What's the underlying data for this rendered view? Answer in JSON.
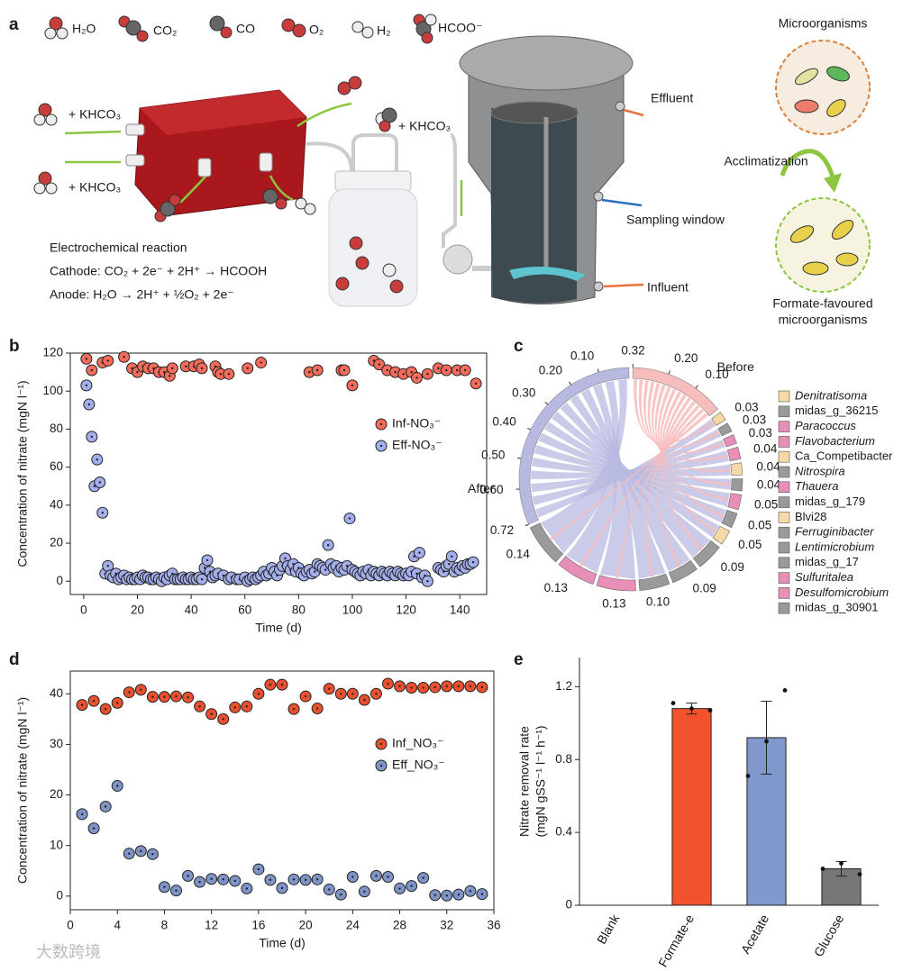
{
  "panel_labels": [
    "a",
    "b",
    "c",
    "d",
    "e"
  ],
  "diagram": {
    "molecule_legend": [
      "H₂O",
      "CO₂",
      "CO",
      "O₂",
      "H₂",
      "HCOO⁻"
    ],
    "feed_labels": [
      "+ KHCO₃",
      "+ KHCO₃",
      "+ KHCO₃"
    ],
    "reaction_title": "Electrochemical reaction",
    "cathode": "Cathode: CO₂ + 2e⁻ + 2H⁺ → HCOOH",
    "anode": "Anode: H₂O → 2H⁺ + ½O₂ + 2e⁻",
    "reactor_labels": [
      "Effluent",
      "Sampling window",
      "Influent"
    ],
    "microbes_top": "Microorganisms",
    "microbes_step": "Acclimatization",
    "microbes_bottom": [
      "Formate-favoured",
      "microorganisms"
    ]
  },
  "chart_data": [
    {
      "type": "scatter",
      "x_label": "Time (d)",
      "y_label": "Concentration of nitrate (mgN l⁻¹)",
      "xlim": [
        -5,
        150
      ],
      "ylim": [
        -7,
        120
      ],
      "xticks": [
        0,
        20,
        40,
        60,
        80,
        100,
        120,
        140
      ],
      "yticks": [
        0,
        20,
        40,
        60,
        80,
        100,
        120
      ],
      "series": [
        {
          "name": "Inf-NO₃⁻",
          "color": "#f36c5c",
          "x": [
            1,
            3,
            7,
            9,
            15,
            18,
            20,
            22,
            24,
            26,
            28,
            30,
            32,
            33,
            38,
            41,
            43,
            44,
            49,
            50,
            51,
            54,
            61,
            66,
            84,
            87,
            96,
            97,
            100,
            108,
            110,
            113,
            116,
            119,
            122,
            124,
            128,
            132,
            135,
            139,
            142,
            146
          ],
          "values": [
            117,
            111,
            115,
            116,
            118,
            112,
            110,
            113,
            112,
            112,
            110,
            110,
            108,
            112,
            113,
            113,
            114,
            112,
            113,
            110,
            109,
            109,
            112,
            115,
            110,
            111,
            111,
            111,
            103,
            116,
            114,
            111,
            110,
            109,
            110,
            107,
            109,
            112,
            111,
            111,
            111,
            104
          ]
        },
        {
          "name": "Eff-NO₃⁻",
          "color": "#a4aeea",
          "x": [
            1,
            2,
            3,
            4,
            5,
            6,
            7,
            8,
            9,
            10,
            11,
            12,
            13,
            14,
            15,
            16,
            17,
            18,
            19,
            20,
            21,
            22,
            23,
            24,
            25,
            26,
            27,
            28,
            29,
            30,
            31,
            32,
            33,
            34,
            35,
            36,
            37,
            38,
            39,
            40,
            41,
            42,
            43,
            44,
            45,
            46,
            47,
            48,
            49,
            50,
            52,
            54,
            55,
            57,
            58,
            60,
            61,
            62,
            63,
            64,
            65,
            66,
            67,
            68,
            69,
            70,
            71,
            72,
            73,
            74,
            75,
            76,
            77,
            78,
            79,
            80,
            81,
            82,
            83,
            84,
            85,
            86,
            87,
            88,
            89,
            90,
            91,
            92,
            93,
            94,
            95,
            96,
            97,
            98,
            99,
            100,
            101,
            102,
            103,
            104,
            105,
            106,
            107,
            108,
            109,
            110,
            111,
            112,
            113,
            114,
            115,
            116,
            117,
            118,
            119,
            120,
            121,
            122,
            123,
            124,
            125,
            126,
            127,
            128,
            132,
            133,
            134,
            135,
            136,
            137,
            138,
            139,
            140,
            141,
            142,
            143,
            144,
            145
          ],
          "values": [
            103,
            93,
            76,
            50,
            64,
            52,
            36,
            4,
            8,
            3,
            2,
            4,
            1,
            2,
            3,
            1,
            2,
            1,
            1,
            2,
            1,
            3,
            2,
            2,
            1,
            1,
            2,
            1,
            0,
            2,
            1,
            3,
            4,
            1,
            1,
            1,
            2,
            1,
            1,
            2,
            1,
            1,
            2,
            1,
            7,
            11,
            5,
            2,
            3,
            4,
            3,
            1,
            2,
            1,
            1,
            2,
            0,
            1,
            2,
            1,
            2,
            3,
            5,
            3,
            4,
            7,
            5,
            3,
            6,
            8,
            12,
            8,
            6,
            9,
            5,
            7,
            4,
            3,
            5,
            6,
            4,
            5,
            9,
            8,
            7,
            6,
            19,
            9,
            7,
            8,
            5,
            7,
            6,
            8,
            33,
            6,
            5,
            4,
            3,
            5,
            4,
            6,
            3,
            5,
            4,
            3,
            5,
            4,
            3,
            5,
            4,
            3,
            5,
            4,
            3,
            4,
            3,
            5,
            13,
            4,
            15,
            2,
            3,
            0,
            7,
            6,
            5,
            8,
            9,
            13,
            5,
            7,
            6,
            8,
            7,
            9,
            9,
            10
          ]
        }
      ]
    },
    {
      "type": "chord",
      "before_label": "Before",
      "after_label": "After",
      "before_lim": [
        0,
        0.32
      ],
      "after_lim": [
        0,
        0.72
      ],
      "before_color": "#f7bcbc",
      "after_color": "#b8b9e0",
      "before_ticks": [
        {
          "value": 0.1,
          "label": "0.10"
        },
        {
          "value": 0.2,
          "label": "0.20"
        },
        0.32
      ],
      "after_ticks": [
        {
          "value": 0.1,
          "label": "0.10"
        },
        {
          "value": 0.2,
          "label": "0.20"
        },
        {
          "value": 0.3,
          "label": "0.30"
        },
        {
          "value": 0.4,
          "label": "0.40"
        },
        {
          "value": 0.5,
          "label": "0.50"
        },
        {
          "value": 0.6,
          "label": "0.60"
        },
        0.72
      ],
      "categories": [
        "Denitratisoma",
        "midas_g_36215",
        "Paracoccus",
        "Flavobacterium",
        "Ca_Competibacter",
        "Nitrospira",
        "Thauera",
        "midas_g_179",
        "Blvi28",
        "Ferruginibacter",
        "Lentimicrobium",
        "midas_g_17",
        "Sulfuritalea",
        "Desulfomicrobium",
        "midas_g_30901"
      ],
      "italic": [
        true,
        false,
        true,
        true,
        false,
        true,
        true,
        false,
        false,
        true,
        true,
        false,
        true,
        true,
        false
      ],
      "colors": [
        "#f7d9a8",
        "#9a9a9a",
        "#e88fb8",
        "#e88fb8",
        "#f7d9a8",
        "#9a9a9a",
        "#e88fb8",
        "#9a9a9a",
        "#f7d9a8",
        "#9a9a9a",
        "#9a9a9a",
        "#9a9a9a",
        "#e88fb8",
        "#e88fb8",
        "#9a9a9a"
      ],
      "values": [
        0.03,
        0.03,
        0.03,
        0.04,
        0.04,
        0.04,
        0.05,
        0.05,
        0.05,
        0.09,
        0.09,
        0.1,
        0.13,
        0.13,
        0.14
      ],
      "value_labels": [
        "0.03",
        "0.03",
        "0.03",
        "0.04",
        "0.04",
        "0.04",
        "0.05",
        "0.05",
        "0.05",
        "0.09",
        "0.09",
        "0.10",
        "0.13",
        "0.13",
        "0.14"
      ]
    },
    {
      "type": "scatter",
      "x_label": "Time (d)",
      "y_label": "Concentration of nitrate (mgN l⁻¹)",
      "xlim": [
        0,
        36
      ],
      "ylim": [
        -2.7,
        44.5
      ],
      "xticks": [
        0,
        4,
        8,
        12,
        16,
        20,
        24,
        28,
        32,
        36
      ],
      "yticks": [
        0,
        10,
        20,
        30,
        40
      ],
      "series": [
        {
          "name": "Inf_NO₃⁻",
          "color": "#e9502f",
          "x": [
            1,
            2,
            3,
            4,
            5,
            6,
            7,
            8,
            9,
            10,
            11,
            12,
            13,
            14,
            15,
            16,
            17,
            18,
            19,
            20,
            21,
            22,
            23,
            24,
            25,
            26,
            27,
            28,
            29,
            30,
            31,
            32,
            33,
            34,
            35
          ],
          "values": [
            37.8,
            38.6,
            37,
            38.2,
            40.3,
            40.8,
            39.4,
            39.4,
            39.5,
            39.3,
            37.5,
            36,
            35,
            37.3,
            37.5,
            40,
            41.8,
            41.8,
            37,
            39.5,
            37.1,
            41,
            40,
            40,
            38.8,
            40,
            42,
            41.5,
            41.2,
            41.2,
            41.3,
            41.5,
            41.5,
            41.5,
            41.3
          ]
        },
        {
          "name": "Eff_NO₃⁻",
          "color": "#7e94c6",
          "x": [
            1,
            2,
            3,
            4,
            5,
            6,
            7,
            8,
            9,
            10,
            11,
            12,
            13,
            14,
            15,
            16,
            17,
            18,
            19,
            20,
            21,
            22,
            23,
            24,
            25,
            26,
            27,
            28,
            29,
            30,
            31,
            32,
            33,
            34,
            35
          ],
          "values": [
            16.2,
            13.4,
            17.7,
            21.8,
            8.4,
            8.9,
            8.3,
            1.8,
            1.1,
            4,
            2.8,
            3.4,
            3.3,
            3,
            1.5,
            5.3,
            3.2,
            1.6,
            3.3,
            3.2,
            3.3,
            1.3,
            0.3,
            3.8,
            0.9,
            4,
            3.8,
            1.5,
            2,
            3.6,
            0.2,
            0.1,
            0.3,
            1,
            0.4
          ]
        }
      ]
    },
    {
      "type": "bar",
      "y_label": [
        "Nitrate removal rate",
        "(mgN gSS⁻¹ l⁻¹ h⁻¹)"
      ],
      "ylim": [
        0,
        1.36
      ],
      "yticks": [
        0,
        0.4,
        0.8,
        1.2
      ],
      "categories": [
        "Blank",
        "Formate-e",
        "Acetate",
        "Glucose"
      ],
      "values": [
        0,
        1.08,
        0.92,
        0.2
      ],
      "errors": [
        null,
        0.03,
        0.2,
        0.04
      ],
      "colors": [
        "#f2522e",
        "#f2522e",
        "#8098cc",
        "#777777"
      ],
      "replicates": [
        [],
        [
          1.11,
          1.08,
          1.07
        ],
        [
          0.71,
          0.9,
          1.18
        ],
        [
          0.2,
          0.23,
          0.17
        ]
      ]
    }
  ],
  "watermark": "大数跨境"
}
